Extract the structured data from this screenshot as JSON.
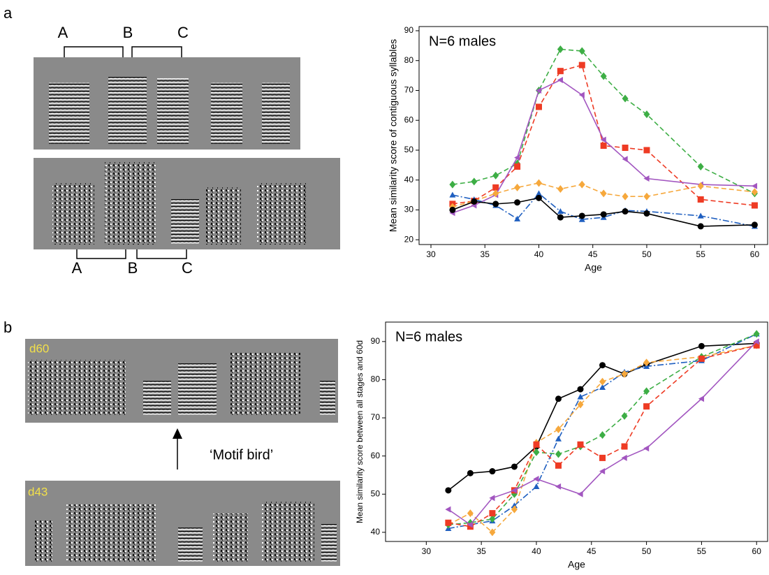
{
  "figure": {
    "panel_a": "a",
    "panel_b": "b",
    "a_top": [
      "A",
      "B",
      "C"
    ],
    "a_bottom": [
      "A",
      "B",
      "C"
    ],
    "d60": "d60",
    "d43": "d43",
    "motif": "‘Motif bird’"
  },
  "chart_data": [
    {
      "type": "line",
      "annotation": "N=6 males",
      "x_label": "Age",
      "y_label": "Mean similarity score of contiguous syllables",
      "x": [
        32,
        34,
        36,
        38,
        40,
        42,
        44,
        46,
        48,
        50,
        55,
        60
      ],
      "xlim": [
        28.9,
        61.2
      ],
      "xticks": [
        30,
        35,
        40,
        45,
        50,
        55,
        60
      ],
      "ylim": [
        18.4,
        91.4
      ],
      "yticks": [
        20,
        30,
        40,
        50,
        60,
        70,
        80,
        90
      ],
      "series": [
        {
          "color": "#3dae45",
          "marker": "diamond",
          "dash": "dashed",
          "values": [
            38.5,
            39.5,
            41.5,
            45.5,
            70,
            83.8,
            83.2,
            74.8,
            67.3,
            62,
            44.5,
            35.5
          ]
        },
        {
          "color": "#ee3b24",
          "marker": "square",
          "dash": "dashed",
          "values": [
            32,
            33,
            37.5,
            44.5,
            64.5,
            76.5,
            78.5,
            51.5,
            50.8,
            50,
            33.5,
            31.5
          ]
        },
        {
          "color": "#a256c0",
          "marker": "triangle-left",
          "dash": "solid",
          "values": [
            29,
            31.5,
            35,
            47.5,
            70,
            73.5,
            68.5,
            53.5,
            47,
            40.5,
            38.5,
            38
          ]
        },
        {
          "color": "#f6a83c",
          "marker": "diamond",
          "dash": "dashed",
          "values": [
            31,
            33,
            35.5,
            37.5,
            39,
            37,
            38.5,
            35.5,
            34.5,
            34.5,
            38,
            36
          ]
        },
        {
          "color": "#1f5fc0",
          "marker": "triangle",
          "dash": "dashdot",
          "values": [
            35,
            33.5,
            31.5,
            27,
            35.5,
            29.5,
            26.8,
            27.5,
            29.8,
            29.5,
            28,
            24.5
          ]
        },
        {
          "color": "#000000",
          "marker": "circle",
          "dash": "solid",
          "values": [
            30,
            32.8,
            32,
            32.5,
            34,
            27.5,
            28,
            28.5,
            29.5,
            28.8,
            24.5,
            25
          ]
        }
      ]
    },
    {
      "type": "line",
      "annotation": "N=6 males",
      "x_label": "Age",
      "y_label": "Mean similarity score between all stages and 60d",
      "x": [
        32,
        34,
        36,
        38,
        40,
        42,
        44,
        46,
        48,
        50,
        55,
        60
      ],
      "xlim": [
        26.3,
        61.0
      ],
      "xticks": [
        30,
        35,
        40,
        45,
        50,
        55,
        60
      ],
      "ylim": [
        37.6,
        95.1
      ],
      "yticks": [
        40,
        50,
        60,
        70,
        80,
        90
      ],
      "series": [
        {
          "color": "#000000",
          "marker": "circle",
          "dash": "solid",
          "values": [
            51,
            55.5,
            56,
            57.2,
            62.5,
            75,
            77.5,
            83.8,
            81.5,
            84,
            88.8,
            89.5
          ]
        },
        {
          "color": "#1f5fc0",
          "marker": "triangle",
          "dash": "dashdot",
          "values": [
            41,
            42,
            43,
            47,
            52,
            64.5,
            75.5,
            78,
            82,
            83.5,
            85,
            92
          ]
        },
        {
          "color": "#f6a83c",
          "marker": "diamond",
          "dash": "dashed",
          "values": [
            42,
            45,
            40,
            46,
            63.5,
            67,
            73.5,
            79.5,
            81.5,
            84.5,
            86,
            89
          ]
        },
        {
          "color": "#3dae45",
          "marker": "diamond",
          "dash": "dashed",
          "values": [
            42,
            42.5,
            43.5,
            50,
            61,
            60.5,
            62.5,
            65.5,
            70.5,
            77,
            86,
            92
          ]
        },
        {
          "color": "#ee3b24",
          "marker": "square",
          "dash": "dashed",
          "values": [
            42.5,
            41.5,
            45,
            51,
            63,
            57.5,
            63,
            59.5,
            62.5,
            73,
            85.5,
            89
          ]
        },
        {
          "color": "#a256c0",
          "marker": "triangle-left",
          "dash": "solid",
          "values": [
            46,
            42,
            49,
            51,
            54,
            52,
            50,
            56,
            59.5,
            62,
            75,
            90
          ]
        }
      ]
    }
  ]
}
